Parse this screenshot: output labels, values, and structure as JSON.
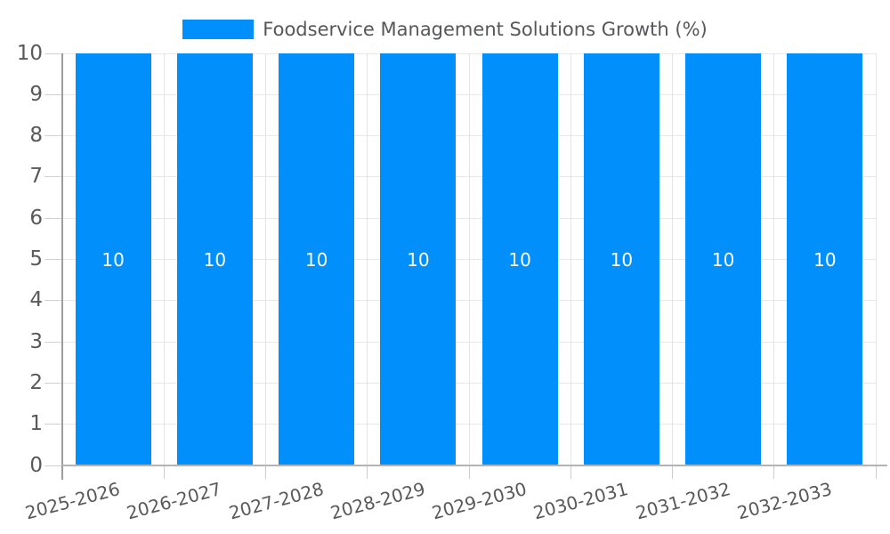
{
  "chart_data": {
    "type": "bar",
    "title": "",
    "legend": {
      "label": "Foodservice Management Solutions Growth (%)",
      "position": "top",
      "swatch_color": "#008FFB"
    },
    "categories": [
      "2025-2026",
      "2026-2027",
      "2027-2028",
      "2028-2029",
      "2029-2030",
      "2030-2031",
      "2031-2032",
      "2032-2033"
    ],
    "series": [
      {
        "name": "Foodservice Management Solutions Growth (%)",
        "values": [
          10,
          10,
          10,
          10,
          10,
          10,
          10,
          10
        ]
      }
    ],
    "data_labels": [
      "10",
      "10",
      "10",
      "10",
      "10",
      "10",
      "10",
      "10"
    ],
    "xlabel": "",
    "ylabel": "",
    "ylim": [
      0,
      10
    ],
    "yticks": [
      0,
      1,
      2,
      3,
      4,
      5,
      6,
      7,
      8,
      9,
      10
    ],
    "grid": true,
    "bar_color": "#008FFB",
    "value_label_color": "#ffffff",
    "axis_text_color": "#59595b"
  }
}
